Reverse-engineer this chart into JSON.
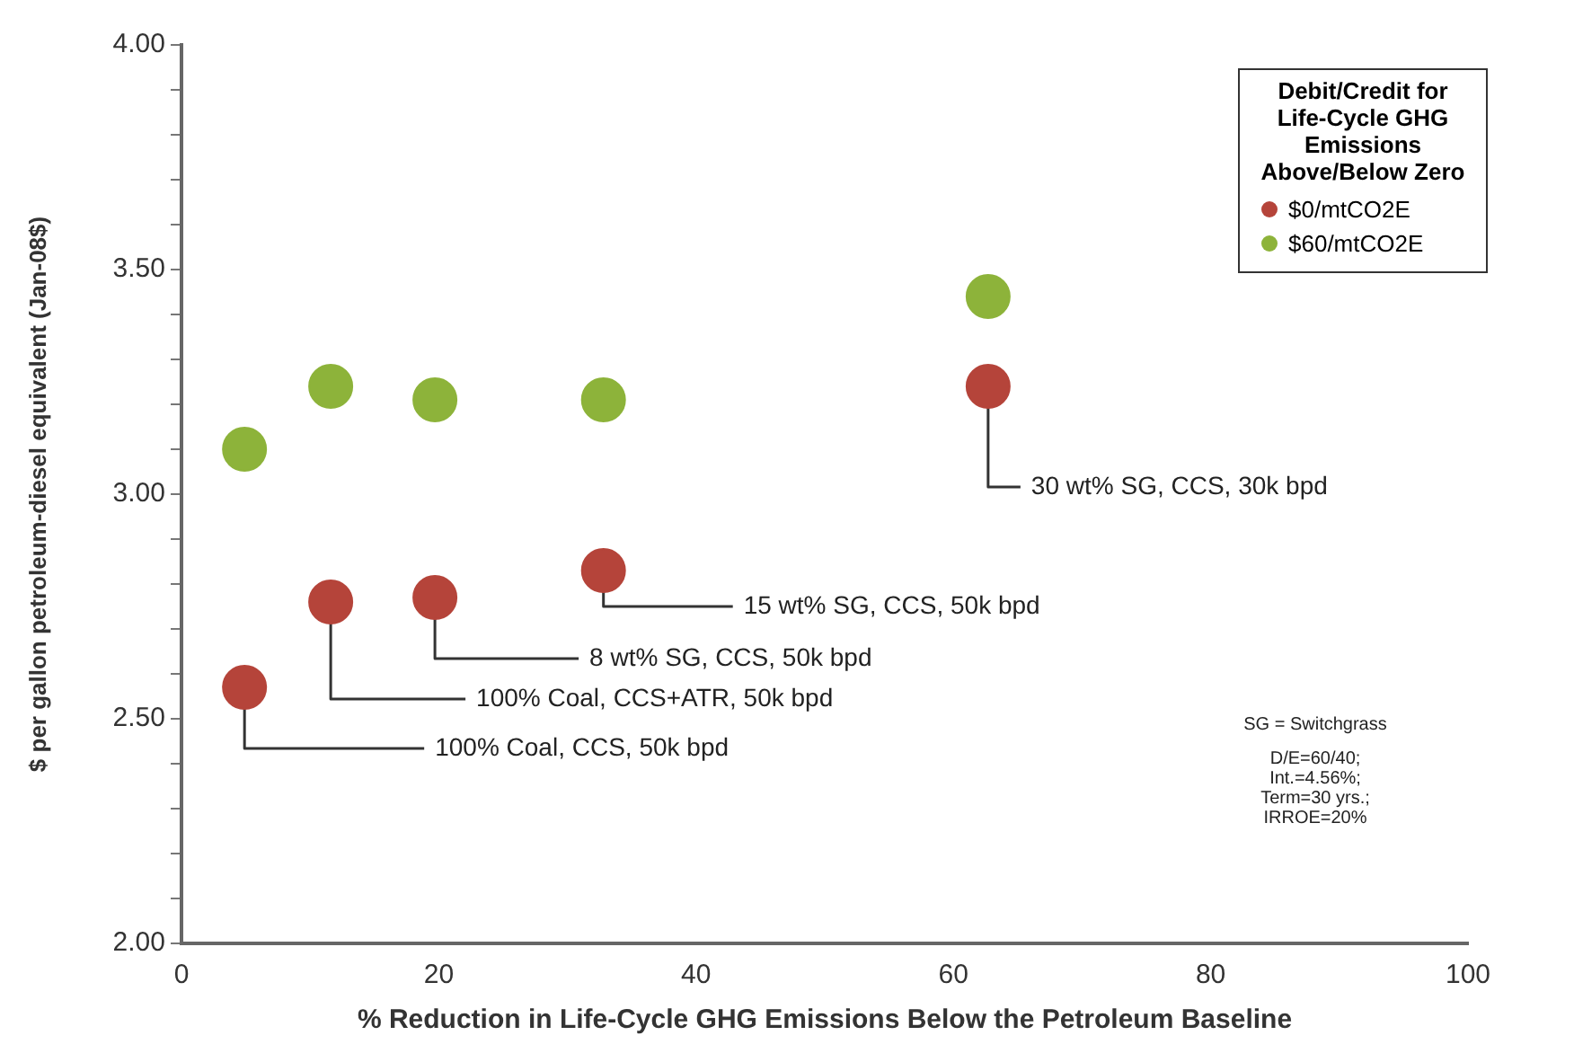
{
  "chart_data": {
    "type": "scatter",
    "xlabel": "% Reduction in Life-Cycle GHG Emissions Below the Petroleum Baseline",
    "ylabel": "$ per gallon petroleum-diesel equivalent (Jan-08$)",
    "legend_title": "Debit/Credit for Life-Cycle  GHG Emissions Above/Below Zero",
    "series": [
      {
        "name": "$0/mtCO2E",
        "color": "#b5443a",
        "x": [
          4.9,
          11.6,
          19.7,
          32.8,
          62.7
        ],
        "values": [
          2.57,
          2.76,
          2.77,
          2.83,
          3.24
        ]
      },
      {
        "name": "$60/mtCO2E",
        "color": "#8db33a",
        "x": [
          4.9,
          11.6,
          19.7,
          32.8,
          62.7
        ],
        "values": [
          3.1,
          3.24,
          3.21,
          3.21,
          3.44
        ]
      }
    ],
    "annotations": [
      {
        "text": "100% Coal, CCS, 50k bpd",
        "x": 4.9,
        "y": 2.57
      },
      {
        "text": "100% Coal, CCS+ATR, 50k bpd",
        "x": 11.6,
        "y": 2.76
      },
      {
        "text": "8 wt% SG, CCS, 50k bpd",
        "x": 19.7,
        "y": 2.77
      },
      {
        "text": "15 wt% SG, CCS, 50k bpd",
        "x": 32.8,
        "y": 2.83
      },
      {
        "text": "30 wt% SG, CCS, 30k bpd",
        "x": 62.7,
        "y": 3.24
      },
      "SG = Switchgrass",
      "D/E=60/40; Int.=4.56%; Term=30 yrs.; IRROE=20%"
    ],
    "xlim": [
      0,
      100
    ],
    "xticks": [
      0,
      20,
      40,
      60,
      80,
      100
    ],
    "ylim": [
      2,
      4
    ],
    "yticks": [
      {
        "value": 2,
        "label": "2.00"
      },
      {
        "value": 2.1,
        "label": null
      },
      {
        "value": 2.2,
        "label": null
      },
      {
        "value": 2.3,
        "label": null
      },
      {
        "value": 2.4,
        "label": null
      },
      {
        "value": 2.5,
        "label": "2.50"
      },
      {
        "value": 2.6,
        "label": null
      },
      {
        "value": 2.7,
        "label": null
      },
      {
        "value": 2.8,
        "label": null
      },
      {
        "value": 2.9,
        "label": null
      },
      {
        "value": 3,
        "label": "3.00"
      },
      {
        "value": 3.1,
        "label": null
      },
      {
        "value": 3.2,
        "label": null
      },
      {
        "value": 3.3,
        "label": null
      },
      {
        "value": 3.4,
        "label": null
      },
      {
        "value": 3.5,
        "label": "3.50"
      },
      {
        "value": 3.6,
        "label": null
      },
      {
        "value": 3.7,
        "label": null
      },
      {
        "value": 3.8,
        "label": null
      },
      {
        "value": 3.9,
        "label": null
      },
      {
        "value": 4,
        "label": "4.00"
      }
    ],
    "grid": false,
    "legend": "top right",
    "marker": "circle"
  }
}
